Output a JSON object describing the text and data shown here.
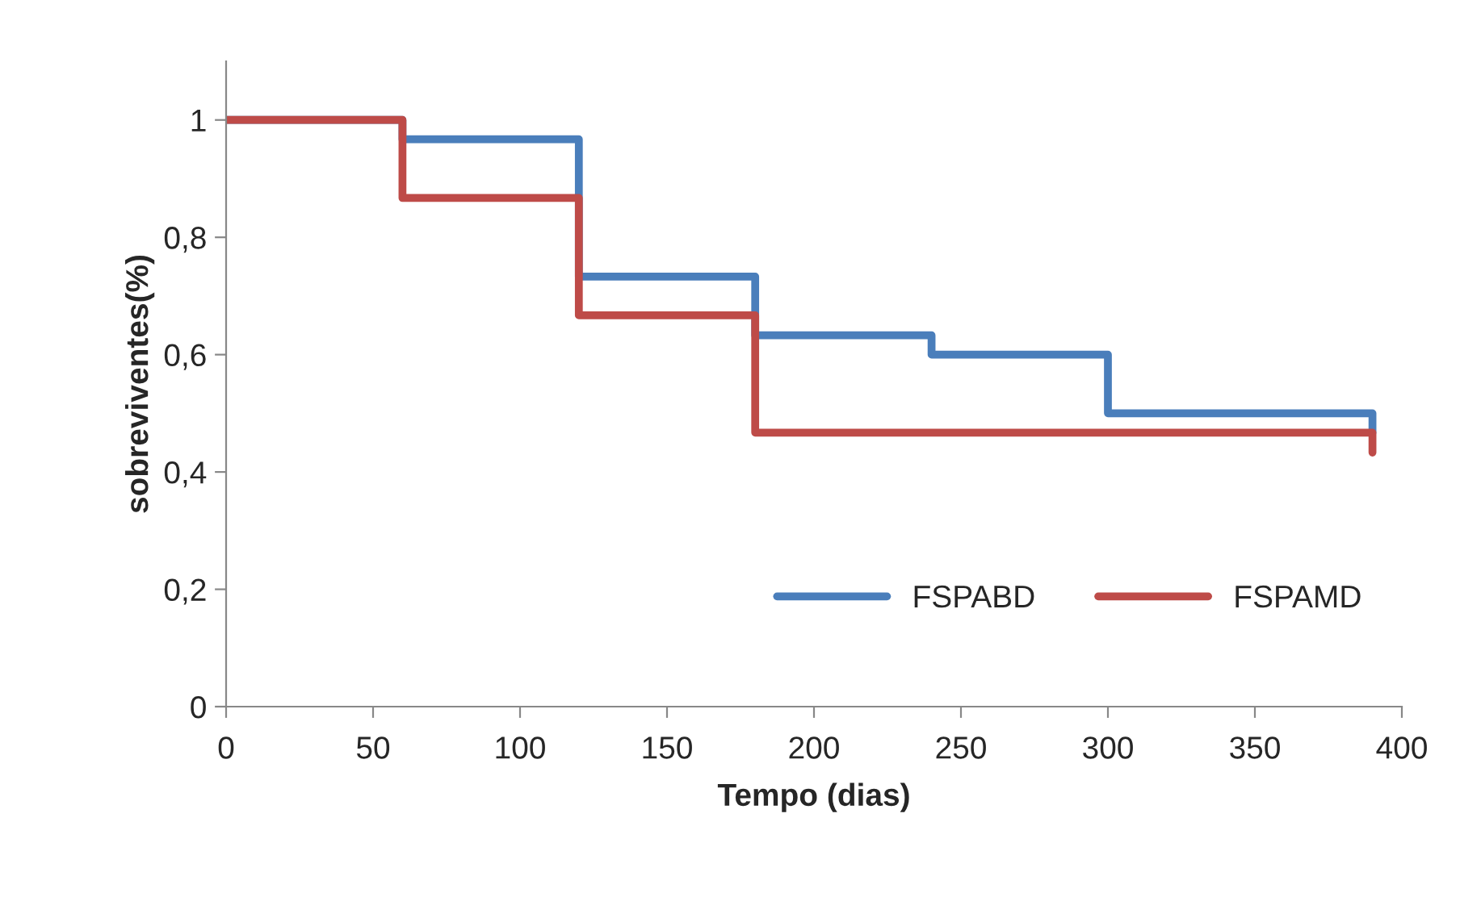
{
  "chart_data": {
    "type": "step",
    "xlabel": "Tempo (dias)",
    "ylabel": "sobreviventes(%)",
    "series": [
      {
        "name": "FSPABD",
        "color": "#4a7ebb",
        "x": [
          0,
          60,
          120,
          180,
          240,
          300,
          390
        ],
        "values": [
          1,
          0.967,
          0.733,
          0.633,
          0.6,
          0.5,
          0.467
        ]
      },
      {
        "name": "FSPAMD",
        "color": "#be4b48",
        "x": [
          0,
          60,
          120,
          180,
          390
        ],
        "values": [
          1,
          0.867,
          0.667,
          0.467,
          0.433
        ]
      }
    ],
    "xlim": [
      0,
      400
    ],
    "xticks": [
      0,
      50,
      100,
      150,
      200,
      250,
      300,
      350,
      400
    ],
    "ylim": [
      0,
      1.1
    ],
    "yticks": [
      {
        "value": 0,
        "label": "0"
      },
      {
        "value": 0.2,
        "label": "0,2"
      },
      {
        "value": 0.4,
        "label": "0,4"
      },
      {
        "value": 0.6,
        "label": "0,6"
      },
      {
        "value": 0.8,
        "label": "0,8"
      },
      {
        "value": 1,
        "label": "1"
      }
    ],
    "grid": false,
    "legend": "bottom right",
    "line_style": "solid",
    "marker": "none"
  }
}
